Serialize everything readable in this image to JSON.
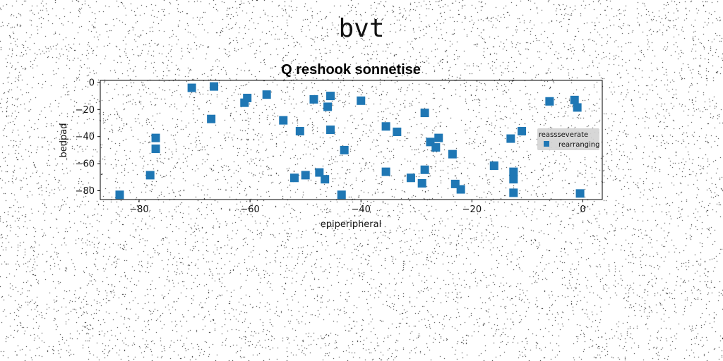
{
  "figure": {
    "suptitle": "bvt"
  },
  "chart_data": {
    "type": "scatter",
    "title": "Q reshook sonnetise",
    "xlabel": "epiperipheral",
    "ylabel": "bedpad",
    "xlim": [
      -87,
      3.5
    ],
    "ylim": [
      -86.5,
      1.5
    ],
    "xticks": [
      -80,
      -60,
      -40,
      -20,
      0
    ],
    "yticks": [
      0,
      -20,
      -40,
      -60,
      -80
    ],
    "grid": false,
    "legend": {
      "title": "reassseverate",
      "placement": "center-right",
      "entries": [
        "rearranging"
      ]
    },
    "series": [
      {
        "name": "rearranging",
        "marker": "square",
        "color": "#1f77b4",
        "points": [
          [
            -83.5,
            -83
          ],
          [
            -78,
            -68.5
          ],
          [
            -77,
            -41
          ],
          [
            -77,
            -49
          ],
          [
            -70.5,
            -4
          ],
          [
            -67,
            -27
          ],
          [
            -66.5,
            -3
          ],
          [
            -61,
            -15
          ],
          [
            -60.5,
            -11.5
          ],
          [
            -57,
            -9
          ],
          [
            -54,
            -28
          ],
          [
            -52,
            -70.5
          ],
          [
            -51,
            -36
          ],
          [
            -50,
            -68.5
          ],
          [
            -48.5,
            -12.5
          ],
          [
            -47.5,
            -66.5
          ],
          [
            -46.5,
            -71.5
          ],
          [
            -46,
            -18
          ],
          [
            -45.5,
            -35
          ],
          [
            -45.5,
            -10
          ],
          [
            -43.5,
            -83
          ],
          [
            -43,
            -50
          ],
          [
            -40,
            -13.5
          ],
          [
            -35.5,
            -32.5
          ],
          [
            -35.5,
            -66
          ],
          [
            -33.5,
            -36.5
          ],
          [
            -31,
            -70.5
          ],
          [
            -29,
            -74.5
          ],
          [
            -28.5,
            -64.5
          ],
          [
            -28.5,
            -22.5
          ],
          [
            -27.5,
            -44
          ],
          [
            -26.5,
            -48
          ],
          [
            -26,
            -41
          ],
          [
            -23.5,
            -53
          ],
          [
            -23,
            -75
          ],
          [
            -22,
            -79
          ],
          [
            -16,
            -61.5
          ],
          [
            -13,
            -41.5
          ],
          [
            -12.5,
            -66
          ],
          [
            -12.5,
            -71.5
          ],
          [
            -12.5,
            -81.5
          ],
          [
            -11,
            -36
          ],
          [
            -6,
            -14
          ],
          [
            -1.5,
            -13
          ],
          [
            -1,
            -18.5
          ],
          [
            -0.5,
            -82
          ]
        ]
      }
    ]
  },
  "colors": {
    "series": "#1f77b4",
    "legend_bg": "#d3d3d3"
  }
}
